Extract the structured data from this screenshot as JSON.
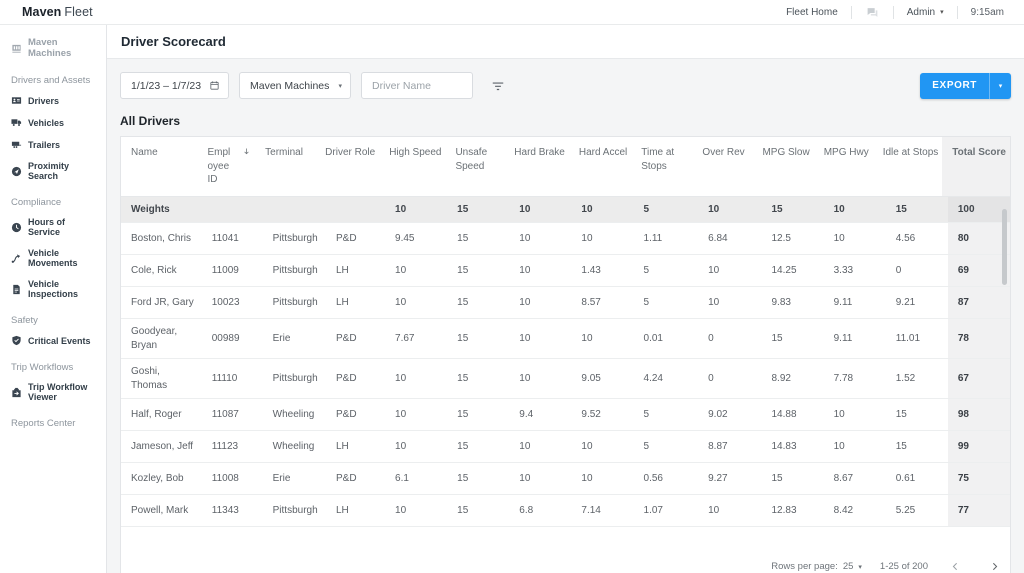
{
  "colors": {
    "accent": "#2196f3"
  },
  "header": {
    "logo_bold": "Maven",
    "logo_light": "Fleet",
    "fleet_home": "Fleet Home",
    "admin": "Admin",
    "time": "9:15am"
  },
  "sidebar": {
    "top_item": "Maven Machines",
    "sections": [
      {
        "label": "Drivers and Assets",
        "items": [
          {
            "label": "Drivers",
            "icon": "id-card-icon"
          },
          {
            "label": "Vehicles",
            "icon": "truck-icon"
          },
          {
            "label": "Trailers",
            "icon": "trailer-icon"
          },
          {
            "label": "Proximity Search",
            "icon": "compass-icon"
          }
        ]
      },
      {
        "label": "Compliance",
        "items": [
          {
            "label": "Hours of Service",
            "icon": "clock-icon"
          },
          {
            "label": "Vehicle Movements",
            "icon": "route-icon"
          },
          {
            "label": "Vehicle Inspections",
            "icon": "document-icon"
          }
        ]
      },
      {
        "label": "Safety",
        "items": [
          {
            "label": "Critical Events",
            "icon": "shield-icon"
          }
        ]
      },
      {
        "label": "Trip Workflows",
        "items": [
          {
            "label": "Trip Workflow Viewer",
            "icon": "workflow-icon"
          }
        ]
      },
      {
        "label": "Reports Center",
        "items": []
      }
    ]
  },
  "page": {
    "title": "Driver Scorecard",
    "filters": {
      "date_range": "1/1/23 – 1/7/23",
      "fleet": "Maven Machines",
      "driver_name_placeholder": "Driver Name"
    },
    "export_label": "EXPORT",
    "table": {
      "title": "All Drivers",
      "columns": [
        "Name",
        "Employee ID",
        "Terminal",
        "Driver Role",
        "High Speed",
        "Unsafe Speed",
        "Hard Brake",
        "Hard Accel",
        "Time at Stops",
        "Over Rev",
        "MPG Slow",
        "MPG Hwy",
        "Idle at Stops",
        "Total Score"
      ],
      "sorted_column": "Employee ID",
      "sort_direction": "desc",
      "weights_label": "Weights",
      "weights": [
        "10",
        "15",
        "10",
        "10",
        "5",
        "10",
        "15",
        "10",
        "15",
        "100"
      ],
      "rows": [
        [
          "Boston, Chris",
          "11041",
          "Pittsburgh",
          "P&D",
          "9.45",
          "15",
          "10",
          "10",
          "1.11",
          "6.84",
          "12.5",
          "10",
          "4.56",
          "80"
        ],
        [
          "Cole, Rick",
          "11009",
          "Pittsburgh",
          "LH",
          "10",
          "15",
          "10",
          "1.43",
          "5",
          "10",
          "14.25",
          "3.33",
          "0",
          "69"
        ],
        [
          "Ford JR, Gary",
          "10023",
          "Pittsburgh",
          "LH",
          "10",
          "15",
          "10",
          "8.57",
          "5",
          "10",
          "9.83",
          "9.11",
          "9.21",
          "87"
        ],
        [
          "Goodyear, Bryan",
          "00989",
          "Erie",
          "P&D",
          "7.67",
          "15",
          "10",
          "10",
          "0.01",
          "0",
          "15",
          "9.11",
          "11.01",
          "78"
        ],
        [
          "Goshi, Thomas",
          "11110",
          "Pittsburgh",
          "P&D",
          "10",
          "15",
          "10",
          "9.05",
          "4.24",
          "0",
          "8.92",
          "7.78",
          "1.52",
          "67"
        ],
        [
          "Half, Roger",
          "11087",
          "Wheeling",
          "P&D",
          "10",
          "15",
          "9.4",
          "9.52",
          "5",
          "9.02",
          "14.88",
          "10",
          "15",
          "98"
        ],
        [
          "Jameson, Jeff",
          "11123",
          "Wheeling",
          "LH",
          "10",
          "15",
          "10",
          "10",
          "5",
          "8.87",
          "14.83",
          "10",
          "15",
          "99"
        ],
        [
          "Kozley, Bob",
          "11008",
          "Erie",
          "P&D",
          "6.1",
          "15",
          "10",
          "10",
          "0.56",
          "9.27",
          "15",
          "8.67",
          "0.61",
          "75"
        ],
        [
          "Powell, Mark",
          "11343",
          "Pittsburgh",
          "LH",
          "10",
          "15",
          "6.8",
          "7.14",
          "1.07",
          "10",
          "12.83",
          "8.42",
          "5.25",
          "77"
        ]
      ]
    },
    "pagination": {
      "rows_per_page_label": "Rows per page:",
      "rows_per_page": "25",
      "range": "1-25 of 200"
    }
  }
}
